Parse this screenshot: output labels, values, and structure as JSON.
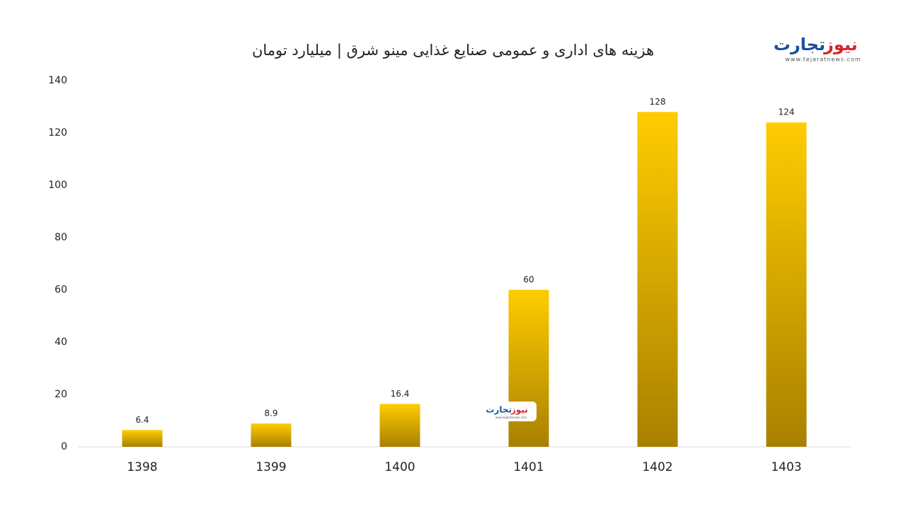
{
  "chart_data": {
    "type": "bar",
    "title": "هزینه های اداری و عمومی صنایع غذایی مینو شرق | میلیارد تومان",
    "categories": [
      "1398",
      "1399",
      "1400",
      "1401",
      "1402",
      "1403"
    ],
    "values": [
      6.4,
      8.9,
      16.4,
      60,
      128,
      124
    ],
    "color": "#ffcc00",
    "ylim": [
      0,
      140
    ],
    "yticks": [
      0,
      20,
      40,
      60,
      80,
      100,
      120,
      140
    ],
    "grid": false
  },
  "logo": {
    "name_blue": "تجارت",
    "name_red": "نیوز",
    "url": "www.tejaratnews.com"
  }
}
